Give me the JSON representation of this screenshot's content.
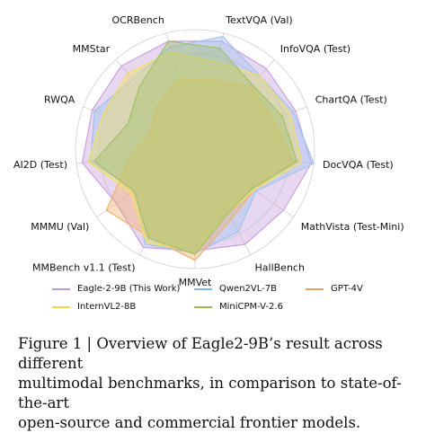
{
  "chart_data": {
    "type": "radar",
    "axes": [
      "TextVQA (Val)",
      "InfoVQA (Test)",
      "ChartQA (Test)",
      "DocVQA (Test)",
      "MathVista (Test-Mini)",
      "HallBench",
      "MMVet",
      "MMBench v1.1 (Test)",
      "MMMU (Val)",
      "AI2D (Test)",
      "RWQA",
      "MMStar",
      "OCRBench"
    ],
    "series": [
      {
        "name": "Eagle-2-9B (This Work)",
        "color": "#c9a0dc",
        "values": [
          0.93,
          0.9,
          0.9,
          0.98,
          0.9,
          0.9,
          0.85,
          0.93,
          0.8,
          0.95,
          0.92,
          0.93,
          0.93
        ]
      },
      {
        "name": "Qwen2VL-7B",
        "color": "#9ec4ee",
        "values": [
          0.97,
          0.82,
          0.88,
          1.0,
          0.62,
          0.78,
          0.87,
          0.9,
          0.6,
          0.88,
          0.9,
          0.78,
          0.88
        ]
      },
      {
        "name": "GPT-4V",
        "color": "#f0b070",
        "values": [
          0.6,
          0.7,
          0.7,
          0.83,
          0.6,
          0.66,
          0.93,
          0.83,
          0.9,
          0.55,
          0.4,
          0.48,
          0.6
        ]
      },
      {
        "name": "InternVL2-8B",
        "color": "#f3df60",
        "values": [
          0.75,
          0.82,
          0.85,
          0.9,
          0.6,
          0.6,
          0.86,
          0.88,
          0.65,
          0.9,
          0.82,
          0.85,
          0.84
        ]
      },
      {
        "name": "MiniCPM-V-2.6",
        "color": "#9fc06a",
        "values": [
          0.87,
          0.72,
          0.78,
          0.86,
          0.58,
          0.6,
          0.88,
          0.84,
          0.62,
          0.85,
          0.6,
          0.7,
          0.93
        ]
      }
    ],
    "rings": 5,
    "legend_position": "bottom"
  },
  "legend": [
    {
      "label": "Eagle-2-9B (This Work)",
      "color": "#b59ad6"
    },
    {
      "label": "Qwen2VL-7B",
      "color": "#7fb7ee"
    },
    {
      "label": "GPT-4V",
      "color": "#e8a35b"
    },
    {
      "label": "InternVL2-8B",
      "color": "#f0d84a"
    },
    {
      "label": "MiniCPM-V-2.6",
      "color": "#93b85a"
    }
  ],
  "caption": {
    "line1": "Figure 1 | Overview of Eagle2-9B’s result across different",
    "line2": "multimodal benchmarks, in comparison to state-of-the-art",
    "line3": "open-source and commercial frontier models."
  }
}
